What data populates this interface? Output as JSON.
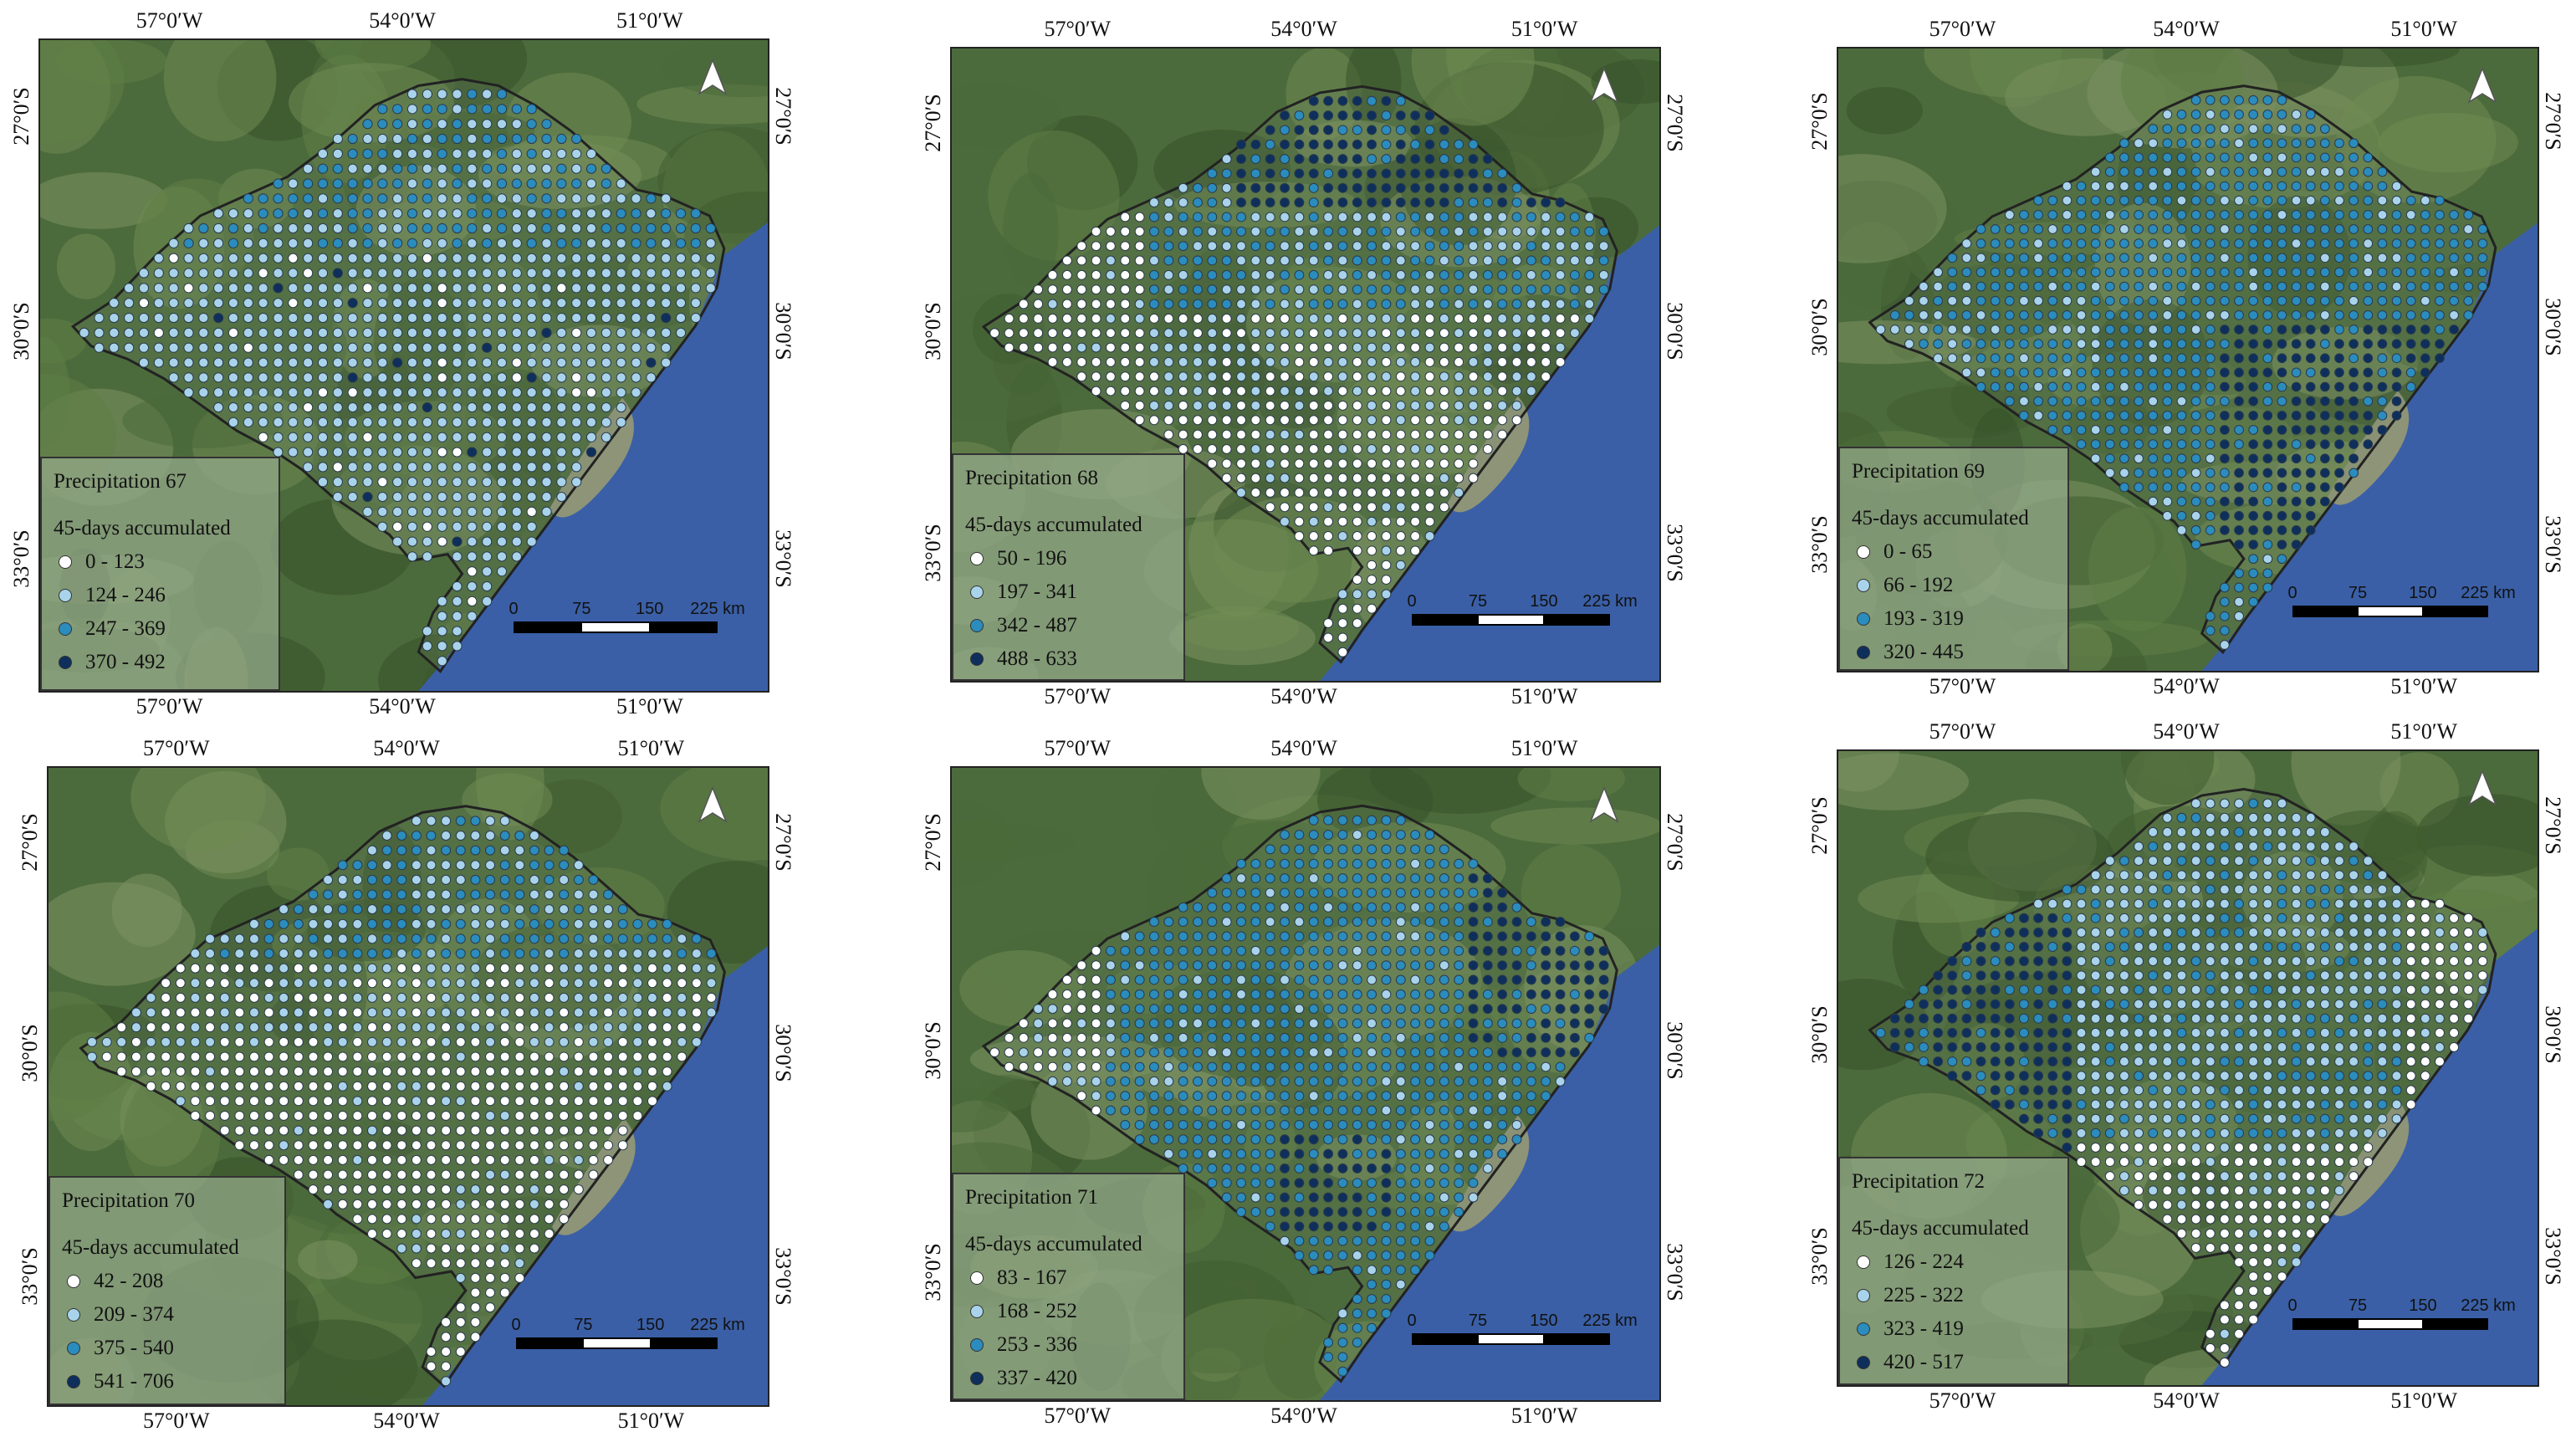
{
  "longitude_labels": [
    "57°0′W",
    "54°0′W",
    "51°0′W"
  ],
  "latitude_labels": [
    "27°0′S",
    "30°0′S",
    "33°0′S"
  ],
  "scale_bar": {
    "ticks": [
      "0",
      "75",
      "150",
      "225 km"
    ]
  },
  "north_arrow": "north-arrow-icon",
  "colors": {
    "c0": "#ffffff",
    "c1": "#a9d3ea",
    "c2": "#2b8cbe",
    "c3": "#0e2f5c",
    "sea": "#3a5fa6",
    "land": "#4c6b3c"
  },
  "legend_subtitle": "45-days accumulated",
  "panels": [
    {
      "title": "Precipitation 67",
      "classes": [
        "0 - 123",
        "124 - 246",
        "247 - 369",
        "370 - 492"
      ],
      "dominant_class": 1
    },
    {
      "title": "Precipitation 68",
      "classes": [
        "50 - 196",
        "197 - 341",
        "342 - 487",
        "488 - 633"
      ],
      "dominant_class": 1
    },
    {
      "title": "Precipitation 69",
      "classes": [
        "0 - 65",
        "66 - 192",
        "193 - 319",
        "320 - 445"
      ],
      "dominant_class": 2
    },
    {
      "title": "Precipitation 70",
      "classes": [
        "42 - 208",
        "209 - 374",
        "375 - 540",
        "541 - 706"
      ],
      "dominant_class": 0
    },
    {
      "title": "Precipitation 71",
      "classes": [
        "83 - 167",
        "168 - 252",
        "253 - 336",
        "337 - 420"
      ],
      "dominant_class": 2
    },
    {
      "title": "Precipitation 72",
      "classes": [
        "126 - 224",
        "225 - 322",
        "323 - 419",
        "420 - 517"
      ],
      "dominant_class": 1
    }
  ]
}
